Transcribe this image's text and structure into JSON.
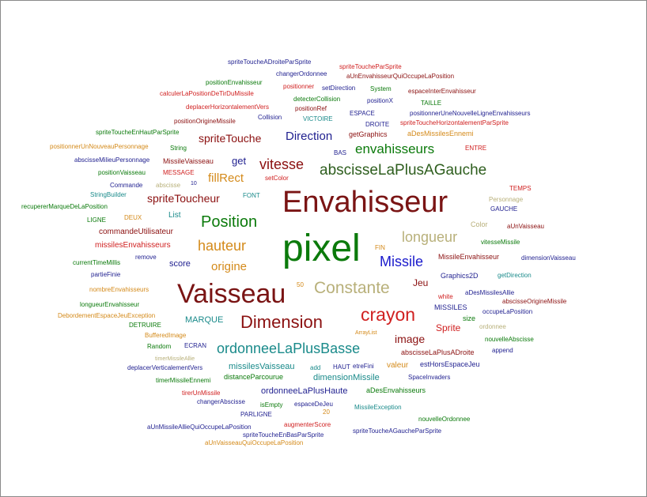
{
  "palette": {
    "navy": "#1f1f8f",
    "red": "#d02020",
    "darkred": "#8b1010",
    "green": "#0b7a0b",
    "darkgreen": "#2e5e1e",
    "teal": "#198a8a",
    "orange": "#d48a1a",
    "olive": "#b8b07a",
    "blue": "#1a1acc",
    "maroon": "#7a1414"
  },
  "words": [
    {
      "text": "spriteToucheADroiteParSprite",
      "size": 8,
      "color": "#1f1f8f"
    },
    {
      "text": "spriteToucheParSprite",
      "size": 8,
      "color": "#d02020"
    },
    {
      "text": "changerOrdonnee",
      "size": 8,
      "color": "#1f1f8f"
    },
    {
      "text": "aUnEnvahisseurQuiOccupeLaPosition",
      "size": 8,
      "color": "#8b1010"
    },
    {
      "text": "positionEnvahisseur",
      "size": 8,
      "color": "#0b7a0b"
    },
    {
      "text": "positionner",
      "size": 8,
      "color": "#d02020"
    },
    {
      "text": "setDirection",
      "size": 8,
      "color": "#1f1f8f"
    },
    {
      "text": "System",
      "size": 8,
      "color": "#0b7a0b"
    },
    {
      "text": "espaceInterEnvahisseur",
      "size": 8,
      "color": "#8b1010"
    },
    {
      "text": "calculerLaPositionDeTirDuMissile",
      "size": 8,
      "color": "#d02020"
    },
    {
      "text": "detecterCollision",
      "size": 8,
      "color": "#0b7a0b"
    },
    {
      "text": "positionX",
      "size": 8,
      "color": "#1f1f8f"
    },
    {
      "text": "TAILLE",
      "size": 8,
      "color": "#0b7a0b"
    },
    {
      "text": "deplacerHorizontalementVers",
      "size": 8,
      "color": "#d02020"
    },
    {
      "text": "positionRef",
      "size": 8,
      "color": "#8b1010"
    },
    {
      "text": "ESPACE",
      "size": 8,
      "color": "#1f1f8f"
    },
    {
      "text": "positionnerUneNouvelleLigneEnvahisseurs",
      "size": 8,
      "color": "#1f1f8f"
    },
    {
      "text": "positionOrigineMissile",
      "size": 8,
      "color": "#8b1010"
    },
    {
      "text": "Collision",
      "size": 8,
      "color": "#1f1f8f"
    },
    {
      "text": "VICTOIRE",
      "size": 8,
      "color": "#198a8a"
    },
    {
      "text": "DROITE",
      "size": 8,
      "color": "#1f1f8f"
    },
    {
      "text": "spriteToucheHorizontalementParSprite",
      "size": 8,
      "color": "#d02020"
    },
    {
      "text": "spriteToucheEnHautParSprite",
      "size": 8,
      "color": "#0b7a0b"
    },
    {
      "text": "spriteTouche",
      "size": 14,
      "color": "#8b1010"
    },
    {
      "text": "Direction",
      "size": 15,
      "color": "#1f1f8f"
    },
    {
      "text": "getGraphics",
      "size": 9,
      "color": "#8b1010"
    },
    {
      "text": "aDesMissilesEnnemi",
      "size": 9,
      "color": "#d48a1a"
    },
    {
      "text": "positionnerUnNouveauPersonnage",
      "size": 8,
      "color": "#d48a1a"
    },
    {
      "text": "String",
      "size": 8,
      "color": "#0b7a0b"
    },
    {
      "text": "BAS",
      "size": 8,
      "color": "#1f1f8f"
    },
    {
      "text": "envahisseurs",
      "size": 17,
      "color": "#0b7a0b"
    },
    {
      "text": "ENTRE",
      "size": 8,
      "color": "#d02020"
    },
    {
      "text": "abscisseMilieuPersonnage",
      "size": 8,
      "color": "#1f1f8f"
    },
    {
      "text": "MissileVaisseau",
      "size": 9,
      "color": "#8b1010"
    },
    {
      "text": "get",
      "size": 13,
      "color": "#1f1f8f"
    },
    {
      "text": "vitesse",
      "size": 18,
      "color": "#8b1010"
    },
    {
      "text": "abscisseLaPlusAGauche",
      "size": 19,
      "color": "#2e5e1e"
    },
    {
      "text": "positionVaisseau",
      "size": 8,
      "color": "#0b7a0b"
    },
    {
      "text": "MESSAGE",
      "size": 8,
      "color": "#d02020"
    },
    {
      "text": "fillRect",
      "size": 15,
      "color": "#d48a1a"
    },
    {
      "text": "setColor",
      "size": 8,
      "color": "#d02020"
    },
    {
      "text": "Commande",
      "size": 8,
      "color": "#1f1f8f"
    },
    {
      "text": "abscisse",
      "size": 8,
      "color": "#b8b07a"
    },
    {
      "text": "10",
      "size": 7,
      "color": "#1f1f8f"
    },
    {
      "text": "TEMPS",
      "size": 8,
      "color": "#d02020"
    },
    {
      "text": "StringBuilder",
      "size": 8,
      "color": "#198a8a"
    },
    {
      "text": "FONT",
      "size": 8,
      "color": "#198a8a"
    },
    {
      "text": "Personnage",
      "size": 8,
      "color": "#b8b07a"
    },
    {
      "text": "spriteToucheur",
      "size": 14,
      "color": "#8b1010"
    },
    {
      "text": "Envahisseur",
      "size": 38,
      "color": "#7a1414"
    },
    {
      "text": "recupererMarqueDeLaPosition",
      "size": 8,
      "color": "#0b7a0b"
    },
    {
      "text": "GAUCHE",
      "size": 8,
      "color": "#1f1f8f"
    },
    {
      "text": "DEUX",
      "size": 8,
      "color": "#d48a1a"
    },
    {
      "text": "List",
      "size": 10,
      "color": "#198a8a"
    },
    {
      "text": "LIGNE",
      "size": 8,
      "color": "#0b7a0b"
    },
    {
      "text": "Position",
      "size": 20,
      "color": "#0b7a0b"
    },
    {
      "text": "Color",
      "size": 9,
      "color": "#b8b07a"
    },
    {
      "text": "aUnVaisseau",
      "size": 8,
      "color": "#8b1010"
    },
    {
      "text": "commandeUtilisateur",
      "size": 10,
      "color": "#8b1010"
    },
    {
      "text": "longueur",
      "size": 18,
      "color": "#b8b07a"
    },
    {
      "text": "vitesseMissile",
      "size": 8,
      "color": "#0b7a0b"
    },
    {
      "text": "missilesEnvahisseurs",
      "size": 10,
      "color": "#d02020"
    },
    {
      "text": "hauteur",
      "size": 18,
      "color": "#d48a1a"
    },
    {
      "text": "pixel",
      "size": 48,
      "color": "#0b7a0b"
    },
    {
      "text": "FIN",
      "size": 8,
      "color": "#d48a1a"
    },
    {
      "text": "MissileEnvahisseur",
      "size": 9,
      "color": "#8b1010"
    },
    {
      "text": "dimensionVaisseau",
      "size": 8,
      "color": "#1f1f8f"
    },
    {
      "text": "remove",
      "size": 8,
      "color": "#1f1f8f"
    },
    {
      "text": "currentTimeMillis",
      "size": 8,
      "color": "#0b7a0b"
    },
    {
      "text": "score",
      "size": 11,
      "color": "#1f1f8f"
    },
    {
      "text": "origine",
      "size": 15,
      "color": "#d48a1a"
    },
    {
      "text": "Missile",
      "size": 18,
      "color": "#1a1acc"
    },
    {
      "text": "Graphics2D",
      "size": 9,
      "color": "#1f1f8f"
    },
    {
      "text": "getDirection",
      "size": 8,
      "color": "#198a8a"
    },
    {
      "text": "partieFinie",
      "size": 8,
      "color": "#1f1f8f"
    },
    {
      "text": "Jeu",
      "size": 12,
      "color": "#8b1010"
    },
    {
      "text": "nombreEnvahisseurs",
      "size": 8,
      "color": "#d48a1a"
    },
    {
      "text": "50",
      "size": 8,
      "color": "#d48a1a"
    },
    {
      "text": "Vaisseau",
      "size": 34,
      "color": "#7a1414"
    },
    {
      "text": "Constante",
      "size": 21,
      "color": "#b8b07a"
    },
    {
      "text": "white",
      "size": 8,
      "color": "#d02020"
    },
    {
      "text": "aDesMissilesAllie",
      "size": 8,
      "color": "#1f1f8f"
    },
    {
      "text": "abscisseOrigineMissile",
      "size": 8,
      "color": "#8b1010"
    },
    {
      "text": "longueurEnvahisseur",
      "size": 8,
      "color": "#0b7a0b"
    },
    {
      "text": "MISSILES",
      "size": 9,
      "color": "#1f1f8f"
    },
    {
      "text": "occupeLaPosition",
      "size": 8,
      "color": "#1f1f8f"
    },
    {
      "text": "DebordementEspaceJeuException",
      "size": 8,
      "color": "#d48a1a"
    },
    {
      "text": "crayon",
      "size": 23,
      "color": "#d02020"
    },
    {
      "text": "MARQUE",
      "size": 11,
      "color": "#198a8a"
    },
    {
      "text": "size",
      "size": 9,
      "color": "#0b7a0b"
    },
    {
      "text": "DETRUIRE",
      "size": 8,
      "color": "#0b7a0b"
    },
    {
      "text": "Dimension",
      "size": 22,
      "color": "#8b1010"
    },
    {
      "text": "Sprite",
      "size": 12,
      "color": "#d02020"
    },
    {
      "text": "ordonnee",
      "size": 8,
      "color": "#b8b07a"
    },
    {
      "text": "BufferedImage",
      "size": 8,
      "color": "#d48a1a"
    },
    {
      "text": "ArrayList",
      "size": 7,
      "color": "#d48a1a"
    },
    {
      "text": "image",
      "size": 14,
      "color": "#8b1010"
    },
    {
      "text": "nouvelleAbscisse",
      "size": 8,
      "color": "#0b7a0b"
    },
    {
      "text": "Random",
      "size": 8,
      "color": "#0b7a0b"
    },
    {
      "text": "ECRAN",
      "size": 8,
      "color": "#1f1f8f"
    },
    {
      "text": "ordonneeLaPlusBasse",
      "size": 18,
      "color": "#198a8a"
    },
    {
      "text": "abscisseLaPlusADroite",
      "size": 9,
      "color": "#8b1010"
    },
    {
      "text": "append",
      "size": 8,
      "color": "#1f1f8f"
    },
    {
      "text": "timerMissileAllie",
      "size": 7,
      "color": "#b8b07a"
    },
    {
      "text": "deplacerVerticalementVers",
      "size": 8,
      "color": "#1f1f8f"
    },
    {
      "text": "missilesVaisseau",
      "size": 11,
      "color": "#198a8a"
    },
    {
      "text": "add",
      "size": 8,
      "color": "#198a8a"
    },
    {
      "text": "HAUT",
      "size": 8,
      "color": "#1f1f8f"
    },
    {
      "text": "etreFini",
      "size": 8,
      "color": "#1f1f8f"
    },
    {
      "text": "valeur",
      "size": 10,
      "color": "#d48a1a"
    },
    {
      "text": "estHorsEspaceJeu",
      "size": 9,
      "color": "#1f1f8f"
    },
    {
      "text": "timerMissileEnnemi",
      "size": 8,
      "color": "#0b7a0b"
    },
    {
      "text": "distanceParcourue",
      "size": 9,
      "color": "#0b7a0b"
    },
    {
      "text": "dimensionMissile",
      "size": 11,
      "color": "#198a8a"
    },
    {
      "text": "SpaceInvaders",
      "size": 8,
      "color": "#1f1f8f"
    },
    {
      "text": "tirerUnMissile",
      "size": 8,
      "color": "#d02020"
    },
    {
      "text": "ordonneeLaPlusHaute",
      "size": 11,
      "color": "#1f1f8f"
    },
    {
      "text": "aDesEnvahisseurs",
      "size": 9,
      "color": "#0b7a0b"
    },
    {
      "text": "changerAbscisse",
      "size": 8,
      "color": "#1f1f8f"
    },
    {
      "text": "isEmpty",
      "size": 8,
      "color": "#0b7a0b"
    },
    {
      "text": "espaceDeJeu",
      "size": 8,
      "color": "#1f1f8f"
    },
    {
      "text": "MissileException",
      "size": 8,
      "color": "#198a8a"
    },
    {
      "text": "PARLIGNE",
      "size": 8,
      "color": "#1f1f8f"
    },
    {
      "text": "20",
      "size": 8,
      "color": "#d48a1a"
    },
    {
      "text": "nouvelleOrdonnee",
      "size": 8,
      "color": "#0b7a0b"
    },
    {
      "text": "aUnMissileAllieQuiOccupeLaPosition",
      "size": 8,
      "color": "#1f1f8f"
    },
    {
      "text": "augmenterScore",
      "size": 8,
      "color": "#d02020"
    },
    {
      "text": "spriteToucheAGaucheParSprite",
      "size": 8,
      "color": "#1f1f8f"
    },
    {
      "text": "spriteToucheEnBasParSprite",
      "size": 8,
      "color": "#1f1f8f"
    },
    {
      "text": "aUnVaisseauQuiOccupeLaPosition",
      "size": 8,
      "color": "#d48a1a"
    }
  ]
}
